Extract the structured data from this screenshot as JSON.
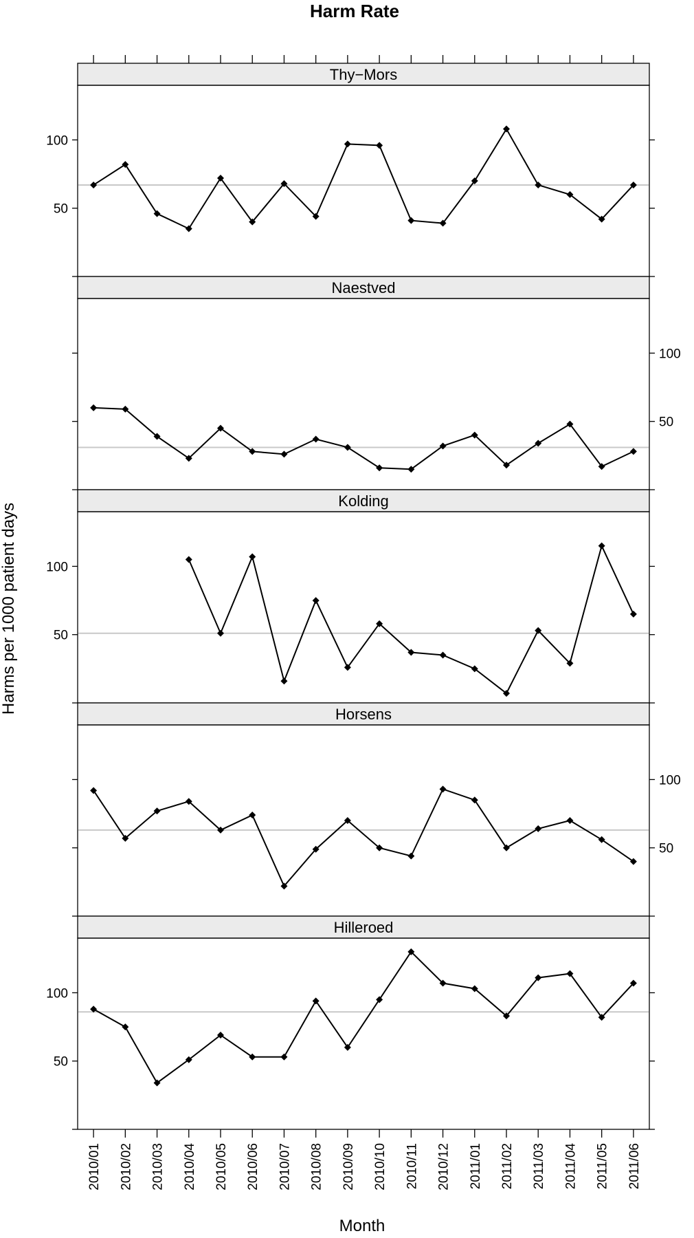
{
  "chart_data": {
    "type": "line",
    "title": "Harm Rate",
    "xlabel": "Month",
    "ylabel": "Harms per 1000 patient days",
    "categories": [
      "2010/01",
      "2010/02",
      "2010/03",
      "2010/04",
      "2010/05",
      "2010/06",
      "2010/07",
      "2010/08",
      "2010/09",
      "2010/10",
      "2010/11",
      "2010/12",
      "2011/01",
      "2011/02",
      "2011/03",
      "2011/04",
      "2011/05",
      "2011/06"
    ],
    "ylim": [
      0,
      140
    ],
    "yticks": [
      50,
      100
    ],
    "grid": false,
    "panels": [
      {
        "name": "Thy−Mors",
        "tick_side": "left",
        "centerline": 67,
        "values": [
          67,
          82,
          46,
          35,
          72,
          40,
          68,
          44,
          97,
          96,
          41,
          39,
          70,
          108,
          67,
          60,
          42,
          67
        ]
      },
      {
        "name": "Naestved",
        "tick_side": "right",
        "centerline": 31,
        "values": [
          60,
          59,
          39,
          23,
          45,
          28,
          26,
          37,
          31,
          16,
          15,
          32,
          40,
          18,
          34,
          48,
          17,
          28
        ]
      },
      {
        "name": "Kolding",
        "tick_side": "left",
        "centerline": 51,
        "values": [
          null,
          null,
          null,
          105,
          51,
          107,
          16,
          75,
          26,
          58,
          37,
          35,
          25,
          7,
          53,
          29,
          115,
          65
        ]
      },
      {
        "name": "Horsens",
        "tick_side": "right",
        "centerline": 63,
        "values": [
          92,
          57,
          77,
          84,
          63,
          74,
          22,
          49,
          70,
          50,
          44,
          93,
          85,
          50,
          64,
          70,
          56,
          40
        ]
      },
      {
        "name": "Hilleroed",
        "tick_side": "left",
        "centerline": 86,
        "values": [
          88,
          75,
          34,
          51,
          69,
          53,
          53,
          94,
          60,
          95,
          130,
          107,
          103,
          83,
          111,
          114,
          82,
          107
        ]
      }
    ]
  }
}
